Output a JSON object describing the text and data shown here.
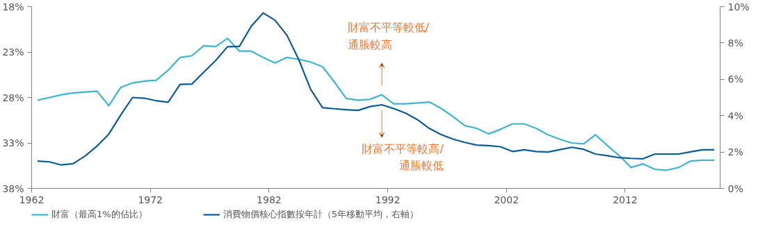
{
  "chart_data": {
    "type": "line",
    "x": [
      1962.5,
      1963.5,
      1964.5,
      1965.5,
      1966.5,
      1967.5,
      1968.5,
      1969.5,
      1970.5,
      1971.5,
      1972.5,
      1973.5,
      1974.5,
      1975.5,
      1976.5,
      1977.5,
      1978.5,
      1979.5,
      1980.5,
      1981.5,
      1982.5,
      1983.5,
      1984.5,
      1985.5,
      1986.5,
      1987.5,
      1988.5,
      1989.5,
      1990.5,
      1991.5,
      1992.5,
      1993.5,
      1994.5,
      1995.5,
      1996.5,
      1997.5,
      1998.5,
      1999.5,
      2000.5,
      2001.5,
      2002.5,
      2003.5,
      2004.5,
      2005.5,
      2006.5,
      2007.5,
      2008.5,
      2009.5,
      2010.5,
      2011.5,
      2012.5,
      2013.5,
      2014.5,
      2015.5,
      2016.5,
      2017.5,
      2018.5,
      2019.5
    ],
    "series": [
      {
        "name": "財富（最高1%的佔比）",
        "color": "#3bb5d3",
        "values": [
          28.3,
          28.0,
          27.7,
          27.5,
          27.4,
          27.3,
          28.9,
          26.9,
          26.4,
          26.2,
          26.1,
          25.0,
          23.6,
          23.4,
          22.3,
          22.4,
          21.5,
          22.9,
          22.9,
          23.6,
          24.2,
          23.6,
          23.8,
          24.1,
          24.6,
          26.3,
          28.1,
          28.3,
          28.2,
          27.7,
          28.7,
          28.7,
          28.6,
          28.5,
          29.2,
          30.1,
          31.1,
          31.4,
          32.0,
          31.5,
          30.9,
          30.9,
          31.4,
          32.1,
          32.6,
          33.0,
          33.1,
          32.1,
          33.3,
          34.4,
          35.7,
          35.3,
          35.9,
          36.0,
          35.7,
          35.0,
          34.9,
          34.9
        ]
      },
      {
        "name": "消費物價核心指數按年計（5年移動平均，右軸）",
        "color": "#0a5a97",
        "axis": "y2",
        "values": [
          1.5,
          1.46,
          1.29,
          1.36,
          1.78,
          2.32,
          2.99,
          4.03,
          5.0,
          4.96,
          4.82,
          4.74,
          5.72,
          5.74,
          6.39,
          7.03,
          7.79,
          7.81,
          8.92,
          9.65,
          9.25,
          8.43,
          7.09,
          5.45,
          4.44,
          4.38,
          4.33,
          4.29,
          4.5,
          4.6,
          4.39,
          4.14,
          3.78,
          3.3,
          2.96,
          2.71,
          2.53,
          2.38,
          2.35,
          2.29,
          2.03,
          2.12,
          2.03,
          2.0,
          2.13,
          2.26,
          2.15,
          1.89,
          1.8,
          1.69,
          1.65,
          1.63,
          1.89,
          1.89,
          1.89,
          2.01,
          2.12,
          2.12
        ]
      }
    ],
    "xlim": [
      1962,
      2020
    ],
    "xticks": [
      1962,
      1972,
      1982,
      1992,
      2002,
      2012
    ],
    "ylim": [
      38,
      18
    ],
    "yticks": [
      {
        "value": 18,
        "label": "18%"
      },
      {
        "value": 23,
        "label": "23%"
      },
      {
        "value": 28,
        "label": "28%"
      },
      {
        "value": 33,
        "label": "33%"
      },
      {
        "value": 38,
        "label": "38%"
      }
    ],
    "y2lim": [
      0,
      10
    ],
    "y2ticks": [
      {
        "value": 0,
        "label": "0%"
      },
      {
        "value": 2,
        "label": "2%"
      },
      {
        "value": 4,
        "label": "4%"
      },
      {
        "value": 6,
        "label": "6%"
      },
      {
        "value": 8,
        "label": "8%"
      },
      {
        "value": 10,
        "label": "10%"
      }
    ],
    "annotations": [
      "財富不平等較低/\n通脹較高",
      "財富不平等較高/\n通脹較低"
    ],
    "grid": false,
    "legend": "bottom",
    "marker": "none",
    "line_style": "solid"
  }
}
